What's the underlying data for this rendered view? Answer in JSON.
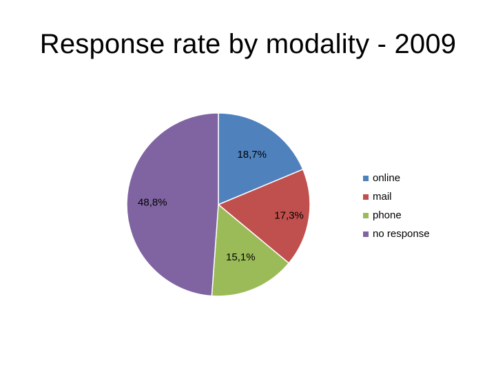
{
  "chart_data": {
    "type": "pie",
    "title": "Response rate by modality - 2009",
    "categories": [
      "online",
      "mail",
      "phone",
      "no response"
    ],
    "values": [
      18.7,
      17.3,
      15.1,
      48.8
    ],
    "data_labels": [
      "18,7%",
      "17,3%",
      "15,1%",
      "48,8%"
    ],
    "colors": [
      "#4f81bd",
      "#c0504d",
      "#9bbb59",
      "#8064a2"
    ],
    "legend_position": "right"
  }
}
